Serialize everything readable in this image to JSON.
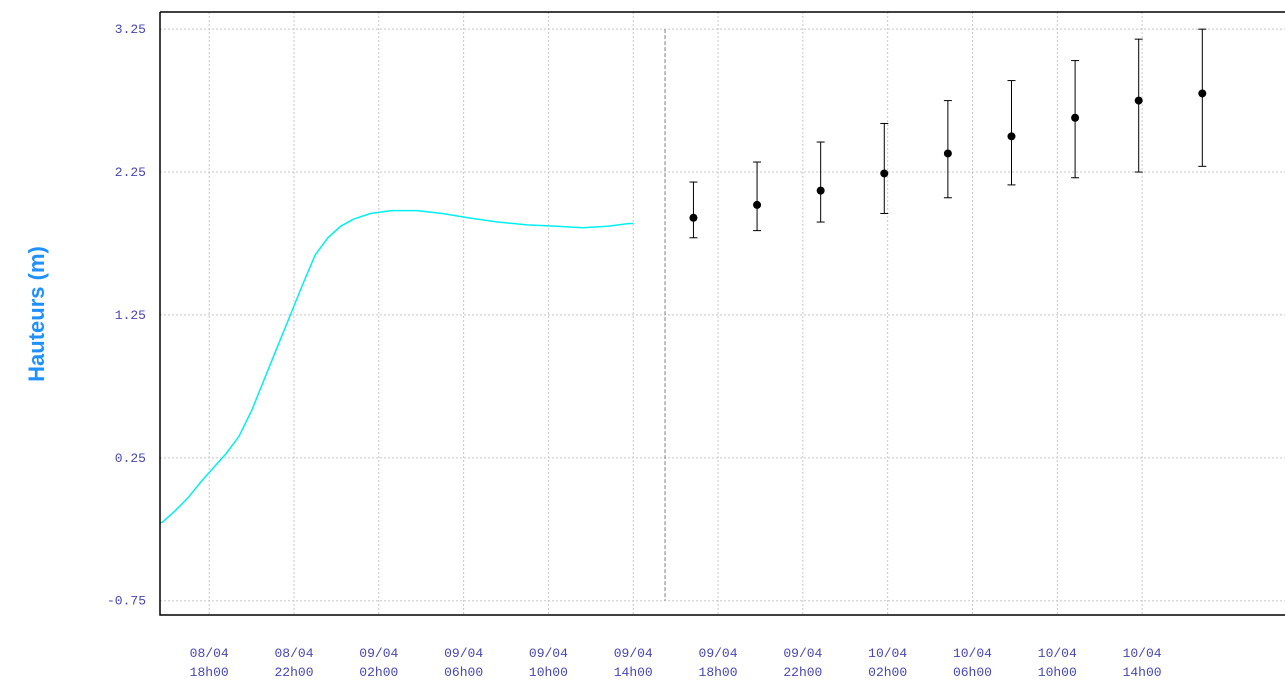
{
  "chart_data": {
    "type": "line",
    "ylabel": "Hauteurs (m)",
    "ylim": [
      -0.85,
      3.37
    ],
    "yticks": [
      -0.75,
      0.25,
      1.25,
      2.25,
      3.25
    ],
    "ytick_labels": [
      "-0.75",
      "0.25",
      "1.25",
      "2.25",
      "3.25"
    ],
    "xlim": [
      -1.16,
      25.37
    ],
    "x_unit": "hours after 08/04 18h00",
    "xticks": [
      {
        "x": 0,
        "line1": "08/04",
        "line2": "18h00"
      },
      {
        "x": 2,
        "line1": "08/04",
        "line2": "22h00"
      },
      {
        "x": 4,
        "line1": "09/04",
        "line2": "02h00"
      },
      {
        "x": 6,
        "line1": "09/04",
        "line2": "06h00"
      },
      {
        "x": 8,
        "line1": "09/04",
        "line2": "10h00"
      },
      {
        "x": 10,
        "line1": "09/04",
        "line2": "14h00"
      },
      {
        "x": 12,
        "line1": "09/04",
        "line2": "18h00"
      },
      {
        "x": 14,
        "line1": "09/04",
        "line2": "22h00"
      },
      {
        "x": 16,
        "line1": "10/04",
        "line2": "02h00"
      },
      {
        "x": 18,
        "line1": "10/04",
        "line2": "06h00"
      },
      {
        "x": 20,
        "line1": "10/04",
        "line2": "10h00"
      },
      {
        "x": 22,
        "line1": "10/04",
        "line2": "14h00"
      }
    ],
    "grid": true,
    "now_marker_x": 10.75,
    "series": [
      {
        "kind": "observed",
        "color": "#00f0f0",
        "points": [
          [
            -1.9,
            -0.25
          ],
          [
            -1.4,
            -0.23
          ],
          [
            -1.1,
            -0.2
          ],
          [
            -0.8,
            -0.12
          ],
          [
            -0.5,
            -0.03
          ],
          [
            -0.2,
            0.08
          ],
          [
            0.1,
            0.18
          ],
          [
            0.4,
            0.28
          ],
          [
            0.7,
            0.4
          ],
          [
            1.0,
            0.58
          ],
          [
            1.3,
            0.8
          ],
          [
            1.6,
            1.02
          ],
          [
            1.9,
            1.24
          ],
          [
            2.2,
            1.46
          ],
          [
            2.5,
            1.67
          ],
          [
            2.8,
            1.79
          ],
          [
            3.1,
            1.87
          ],
          [
            3.4,
            1.92
          ],
          [
            3.8,
            1.96
          ],
          [
            4.3,
            1.98
          ],
          [
            4.9,
            1.98
          ],
          [
            5.5,
            1.96
          ],
          [
            6.1,
            1.93
          ],
          [
            6.8,
            1.9
          ],
          [
            7.5,
            1.88
          ],
          [
            8.2,
            1.87
          ],
          [
            8.8,
            1.86
          ],
          [
            9.4,
            1.87
          ],
          [
            9.9,
            1.89
          ],
          [
            10.0,
            1.89
          ]
        ]
      },
      {
        "kind": "forecast",
        "color": "#000000",
        "points": [
          {
            "x": 11.42,
            "y": 1.93,
            "lo": 1.79,
            "hi": 2.18
          },
          {
            "x": 12.92,
            "y": 2.02,
            "lo": 1.84,
            "hi": 2.32
          },
          {
            "x": 14.42,
            "y": 2.12,
            "lo": 1.9,
            "hi": 2.46
          },
          {
            "x": 15.92,
            "y": 2.24,
            "lo": 1.96,
            "hi": 2.59
          },
          {
            "x": 17.42,
            "y": 2.38,
            "lo": 2.07,
            "hi": 2.75
          },
          {
            "x": 18.92,
            "y": 2.5,
            "lo": 2.16,
            "hi": 2.89
          },
          {
            "x": 20.42,
            "y": 2.63,
            "lo": 2.21,
            "hi": 3.03
          },
          {
            "x": 21.92,
            "y": 2.75,
            "lo": 2.25,
            "hi": 3.18
          },
          {
            "x": 23.42,
            "y": 2.8,
            "lo": 2.29,
            "hi": 3.25
          }
        ]
      }
    ],
    "colors": {
      "axis_text": "#4646b4",
      "ylabel": "#1e90ff",
      "grid": "#c8c8c8",
      "frame": "#000000",
      "now_marker": "#808080"
    }
  }
}
